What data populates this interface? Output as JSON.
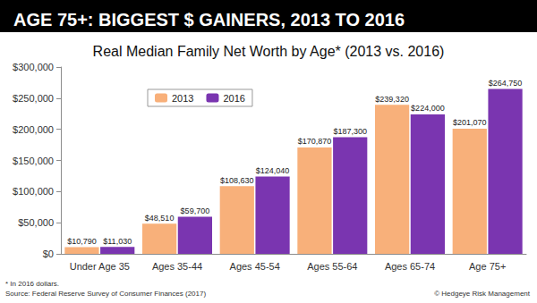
{
  "chart_data": {
    "type": "bar",
    "title": "AGE 75+: BIGGEST $ GAINERS, 2013 TO 2016",
    "subtitle": "Real Median Family Net Worth by Age* (2013 vs. 2016)",
    "categories": [
      "Under Age 35",
      "Ages 35-44",
      "Ages 45-54",
      "Ages 55-64",
      "Ages 65-74",
      "Age 75+"
    ],
    "series": [
      {
        "name": "2013",
        "color": "#F8B07A",
        "values": [
          10790,
          48510,
          108630,
          170870,
          239320,
          201070
        ],
        "value_labels": [
          "$10,790",
          "$48,510",
          "$108,630",
          "$170,870",
          "$239,320",
          "$201,070"
        ]
      },
      {
        "name": "2016",
        "color": "#7A35B0",
        "values": [
          11030,
          59700,
          124040,
          187300,
          224000,
          264750
        ],
        "value_labels": [
          "$11,030",
          "$59,700",
          "$124,040",
          "$187,300",
          "$224,000",
          "$264,750"
        ]
      }
    ],
    "ylim": [
      0,
      300000
    ],
    "yticks": [
      {
        "value": 0,
        "label": "$0"
      },
      {
        "value": 50000,
        "label": "$50,000"
      },
      {
        "value": 100000,
        "label": "$100,000"
      },
      {
        "value": 150000,
        "label": "$150,000"
      },
      {
        "value": 200000,
        "label": "$200,000"
      },
      {
        "value": 250000,
        "label": "$250,000"
      },
      {
        "value": 300000,
        "label": "$300,000"
      }
    ],
    "grid": false,
    "legend": "upper left",
    "data_labels": true,
    "annotations": [
      "* In 2016 dollars.",
      "Source: Federal Reserve Survey of Consumer Finances (2017)",
      "© Hedgeye Risk Management"
    ]
  }
}
